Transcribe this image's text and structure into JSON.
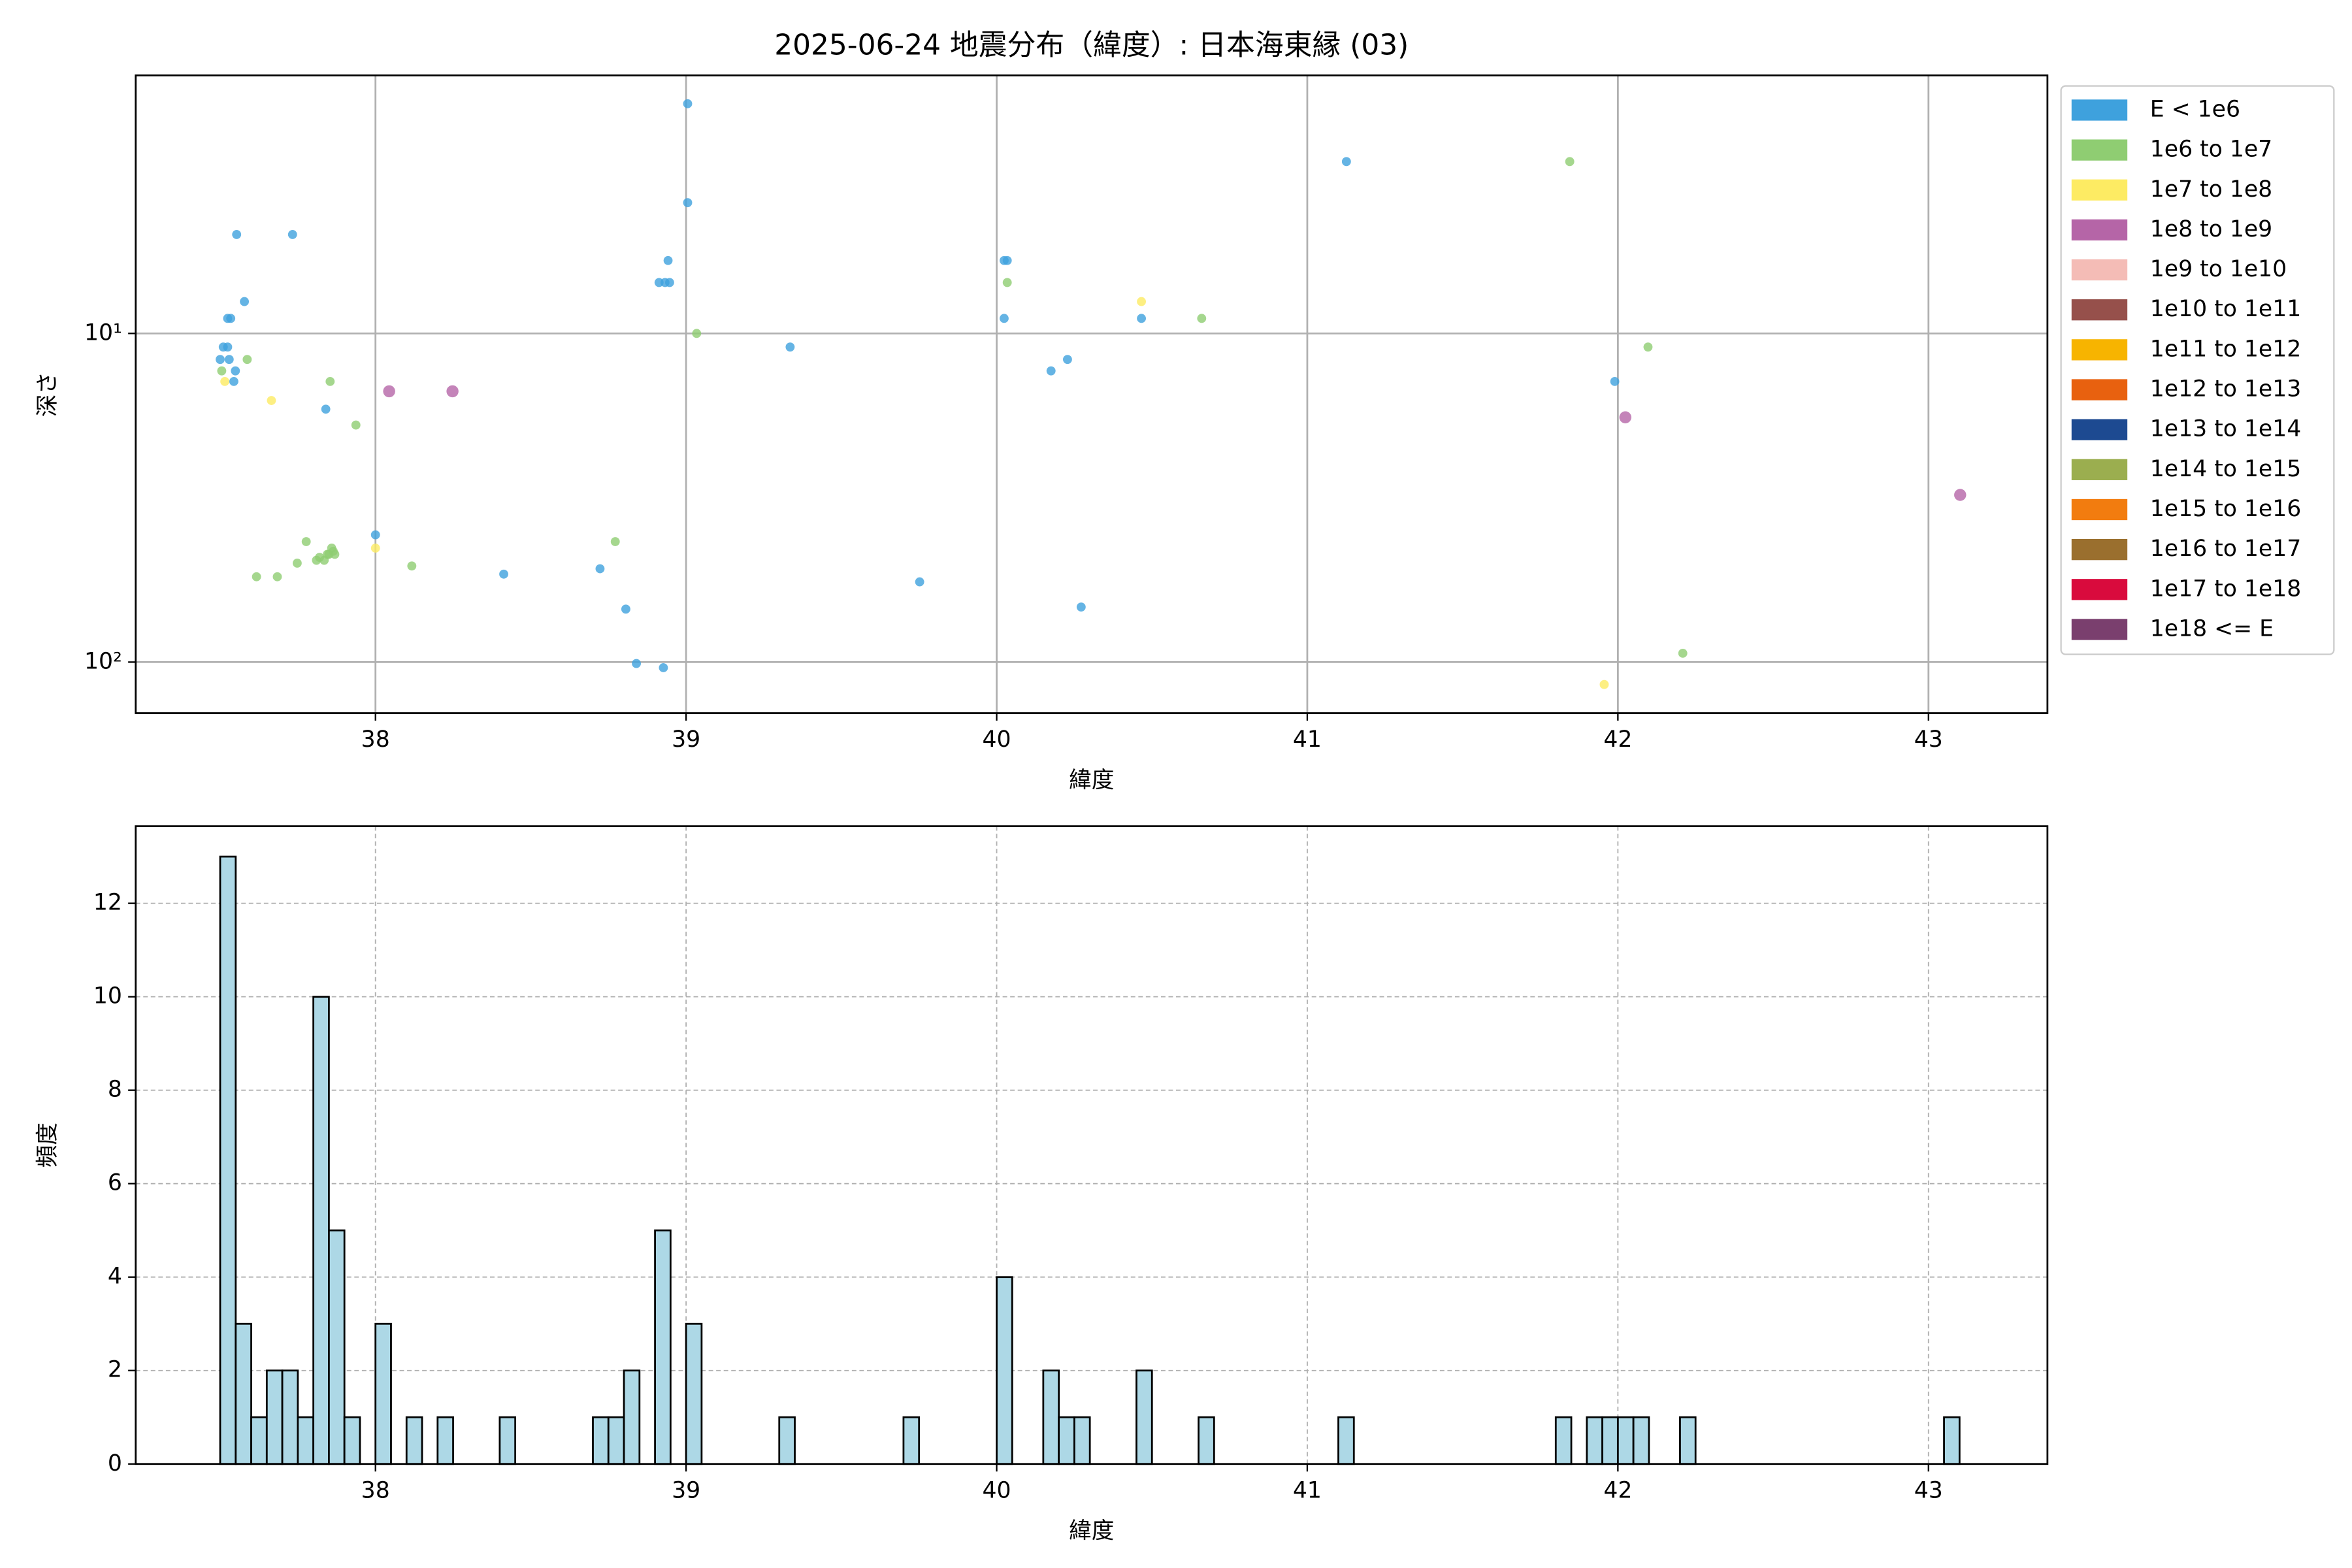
{
  "chart_data": [
    {
      "type": "scatter",
      "title": "2025-06-24 地震分布（緯度）: 日本海東縁 (03)",
      "xlabel": "緯度",
      "ylabel": "深さ",
      "xlim": [
        37.228,
        43.383
      ],
      "ylim": [
        1.64,
        143
      ],
      "y_inverted": true,
      "yscale": "log",
      "xticks": [
        38,
        39,
        40,
        41,
        42,
        43
      ],
      "yticks": [
        {
          "value": 10,
          "label": "10¹"
        },
        {
          "value": 100,
          "label": "10²"
        }
      ],
      "grid": "solid",
      "legend": "outside right",
      "series": [
        {
          "name": "E < 1e6",
          "color": "#3ea1dd",
          "x": [
            39.005,
            39.005,
            41.126,
            37.553,
            37.733,
            37.578,
            37.534,
            37.524,
            37.51,
            37.524,
            37.5,
            37.529,
            37.549,
            37.544,
            38.942,
            38.932,
            38.913,
            38.947,
            40.024,
            40.034,
            40.024,
            40.466,
            39.335,
            40.228,
            40.175,
            41.99,
            37.84,
            38.0,
            38.413,
            38.723,
            38.806,
            39.752,
            40.272,
            38.84,
            38.927
          ],
          "values": [
            2.0,
            4.0,
            3.0,
            5.0,
            5.0,
            8.0,
            9.0,
            9.0,
            11,
            11,
            12,
            12,
            13,
            14,
            6.0,
            7.0,
            7.0,
            7.0,
            6.0,
            6.0,
            9.0,
            9.0,
            11,
            12,
            13,
            14,
            17,
            41,
            54,
            52,
            69,
            57,
            68,
            101,
            104
          ]
        },
        {
          "name": "1e6 to 1e7",
          "color": "#8fcd72",
          "x": [
            41.845,
            40.034,
            39.034,
            40.66,
            42.097,
            37.587,
            37.505,
            37.854,
            37.937,
            38.772,
            37.777,
            37.859,
            37.85,
            37.869,
            37.82,
            37.835,
            37.845,
            37.81,
            37.864,
            37.748,
            38.117,
            37.617,
            37.684,
            42.209
          ],
          "values": [
            3.0,
            7.0,
            10,
            9.0,
            11,
            12,
            13,
            14,
            19,
            43,
            43,
            45,
            47,
            47,
            48,
            49,
            47,
            49,
            46,
            50,
            51,
            55,
            55,
            94
          ]
        },
        {
          "name": "1e7 to 1e8",
          "color": "#fdeb63",
          "x": [
            37.515,
            37.665,
            38.0,
            40.466,
            41.956
          ],
          "values": [
            14,
            16,
            45,
            8,
            117
          ]
        },
        {
          "name": "1e8 to 1e9",
          "color": "#b565a7",
          "x": [
            38.044,
            38.248,
            42.024,
            43.102
          ],
          "values": [
            15,
            15,
            18,
            31
          ]
        },
        {
          "name": "1e9 to 1e10",
          "color": "#f4bcb6",
          "x": [],
          "values": []
        },
        {
          "name": "1e10 to 1e11",
          "color": "#96504b",
          "x": [],
          "values": []
        },
        {
          "name": "1e11 to 1e12",
          "color": "#f7b400",
          "x": [],
          "values": []
        },
        {
          "name": "1e12 to 1e13",
          "color": "#e8610f",
          "x": [],
          "values": []
        },
        {
          "name": "1e13 to 1e14",
          "color": "#1d4a91",
          "x": [],
          "values": []
        },
        {
          "name": "1e14 to 1e15",
          "color": "#9bae4f",
          "x": [],
          "values": []
        },
        {
          "name": "1e15 to 1e16",
          "color": "#f27c0f",
          "x": [],
          "values": []
        },
        {
          "name": "1e16 to 1e17",
          "color": "#9a6f2e",
          "x": [],
          "values": []
        },
        {
          "name": "1e17 to 1e18",
          "color": "#d90b3d",
          "x": [],
          "values": []
        },
        {
          "name": "1e18 <= E",
          "color": "#7a3f6e",
          "x": [],
          "values": []
        }
      ]
    },
    {
      "type": "histogram",
      "xlabel": "緯度",
      "ylabel": "頻度",
      "xlim": [
        37.228,
        43.383
      ],
      "ylim": [
        0,
        13.65
      ],
      "xticks": [
        38,
        39,
        40,
        41,
        42,
        43
      ],
      "yticks": [
        0,
        2,
        4,
        6,
        8,
        10,
        12
      ],
      "grid": "dashed",
      "color": "#add8e6",
      "edgecolor": "#000000",
      "bins": [
        37.5,
        37.55,
        37.6,
        37.65,
        37.7,
        37.75,
        37.8,
        37.85,
        37.9,
        37.95,
        38,
        38.05,
        38.1,
        38.15,
        38.2,
        38.25,
        38.3,
        38.35,
        38.4,
        38.45,
        38.5,
        38.55,
        38.6,
        38.65,
        38.7,
        38.75,
        38.8,
        38.85,
        38.9,
        38.95,
        39,
        39.05,
        39.1,
        39.15,
        39.2,
        39.25,
        39.3,
        39.35,
        39.4,
        39.45,
        39.5,
        39.55,
        39.6,
        39.65,
        39.7,
        39.75,
        39.8,
        39.85,
        39.9,
        39.95,
        40,
        40.05,
        40.1,
        40.15,
        40.2,
        40.25,
        40.3,
        40.35,
        40.4,
        40.45,
        40.5,
        40.55,
        40.6,
        40.65,
        40.7,
        40.75,
        40.8,
        40.85,
        40.9,
        40.95,
        41,
        41.05,
        41.1,
        41.15,
        41.2,
        41.25,
        41.3,
        41.35,
        41.4,
        41.45,
        41.5,
        41.55,
        41.6,
        41.65,
        41.7,
        41.75,
        41.8,
        41.85,
        41.9,
        41.95,
        42,
        42.05,
        42.1,
        42.15,
        42.2,
        42.25,
        42.3,
        42.35,
        42.4,
        42.45,
        42.5,
        42.55,
        42.6,
        42.65,
        42.7,
        42.75,
        42.8,
        42.85,
        42.9,
        42.95,
        43,
        43.05,
        43.1
      ],
      "values": [
        13,
        3,
        1,
        2,
        2,
        1,
        10,
        5,
        1,
        0,
        3,
        0,
        1,
        0,
        1,
        0,
        0,
        0,
        1,
        0,
        0,
        0,
        0,
        0,
        1,
        1,
        2,
        0,
        5,
        0,
        3,
        0,
        0,
        0,
        0,
        0,
        1,
        0,
        0,
        0,
        0,
        0,
        0,
        0,
        1,
        0,
        0,
        0,
        0,
        0,
        4,
        0,
        0,
        2,
        1,
        1,
        0,
        0,
        0,
        2,
        0,
        0,
        0,
        1,
        0,
        0,
        0,
        0,
        0,
        0,
        0,
        0,
        1,
        0,
        0,
        0,
        0,
        0,
        0,
        0,
        0,
        0,
        0,
        0,
        0,
        0,
        1,
        0,
        1,
        1,
        1,
        1,
        0,
        0,
        1,
        0,
        0,
        0,
        0,
        0,
        0,
        0,
        0,
        0,
        0,
        0,
        0,
        0,
        0,
        0,
        0,
        1
      ]
    }
  ]
}
